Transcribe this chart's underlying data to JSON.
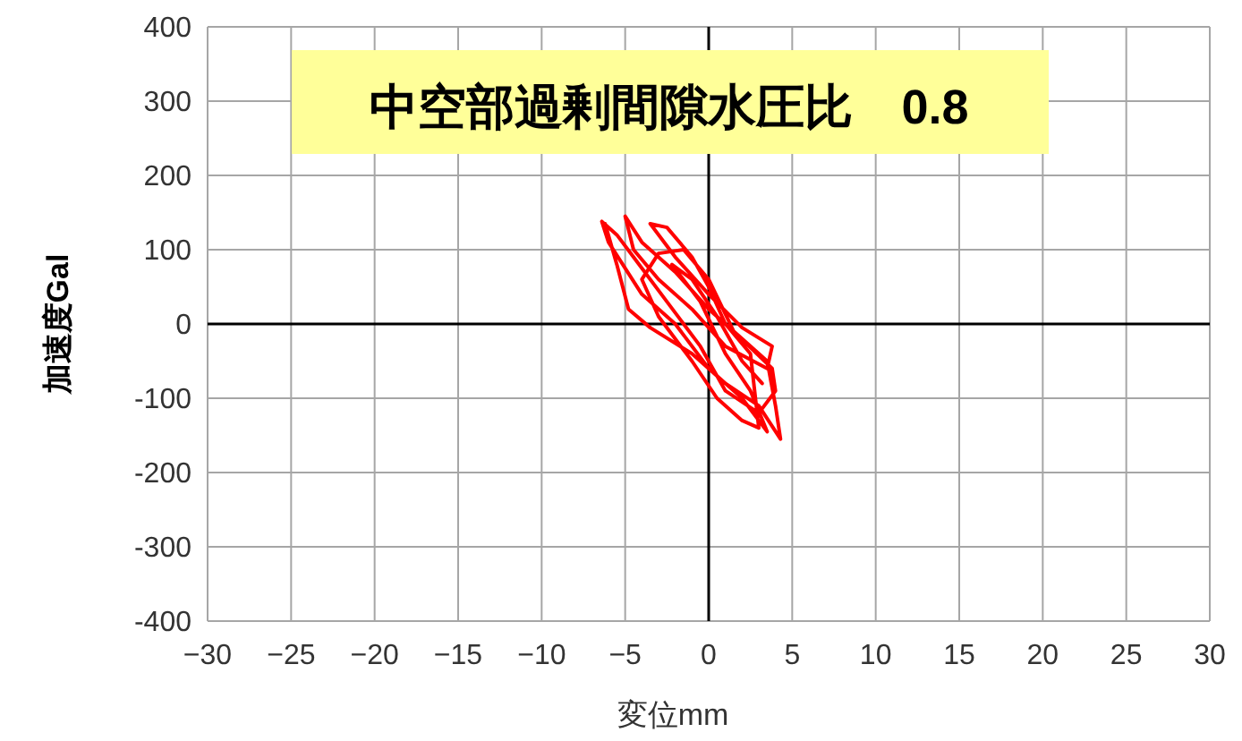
{
  "chart_data": {
    "type": "line",
    "title": "中空部過剰間隙水圧比　0.8",
    "xlabel": "変位mm",
    "ylabel": "加速度Gal",
    "xlim": [
      -30,
      30
    ],
    "ylim": [
      -400,
      400
    ],
    "xticks": [
      {
        "value": -30,
        "label": "−30"
      },
      {
        "value": -25,
        "label": "−25"
      },
      {
        "value": -20,
        "label": "−20"
      },
      {
        "value": -15,
        "label": "−15"
      },
      {
        "value": -10,
        "label": "−10"
      },
      {
        "value": -5,
        "label": "−5"
      },
      0,
      5,
      10,
      15,
      20,
      25,
      30
    ],
    "yticks": [
      -400,
      -300,
      -200,
      -100,
      0,
      100,
      200,
      300,
      400
    ],
    "grid": true,
    "marker": "none",
    "line_style": "solid",
    "series": [
      {
        "color": "#ff0000",
        "x": [
          -6.2,
          -5.5,
          -4.8,
          -3.5,
          -1,
          1,
          3,
          4.3,
          4,
          3.5,
          2,
          0,
          -2,
          -4,
          -5,
          -4.5,
          -3,
          -1,
          1,
          3.5,
          3.8,
          2,
          0,
          -2,
          -3.5,
          -2.5,
          -1,
          0,
          1,
          2.5,
          3,
          2,
          0.5,
          -1,
          -3,
          -4,
          -3,
          -1.5,
          0,
          1.5,
          3.8,
          4,
          3,
          1,
          -0.5,
          -2.5,
          -4.5,
          -5.5,
          -6.4,
          -6,
          -4,
          -2,
          0,
          2,
          3.5,
          2.5,
          1,
          -0.5,
          -2.2,
          -1,
          0.5,
          2,
          3.2
        ],
        "values": [
          135,
          80,
          20,
          -5,
          -40,
          -80,
          -110,
          -155,
          -110,
          -50,
          -20,
          20,
          70,
          110,
          145,
          100,
          60,
          20,
          -30,
          -60,
          -30,
          -5,
          40,
          90,
          135,
          130,
          90,
          50,
          0,
          -40,
          -140,
          -130,
          -100,
          -50,
          10,
          60,
          95,
          100,
          60,
          -10,
          -60,
          -90,
          -120,
          -90,
          -30,
          30,
          90,
          120,
          138,
          110,
          40,
          0,
          -60,
          -100,
          -145,
          -90,
          -40,
          30,
          80,
          60,
          10,
          -50,
          -80
        ]
      }
    ]
  }
}
